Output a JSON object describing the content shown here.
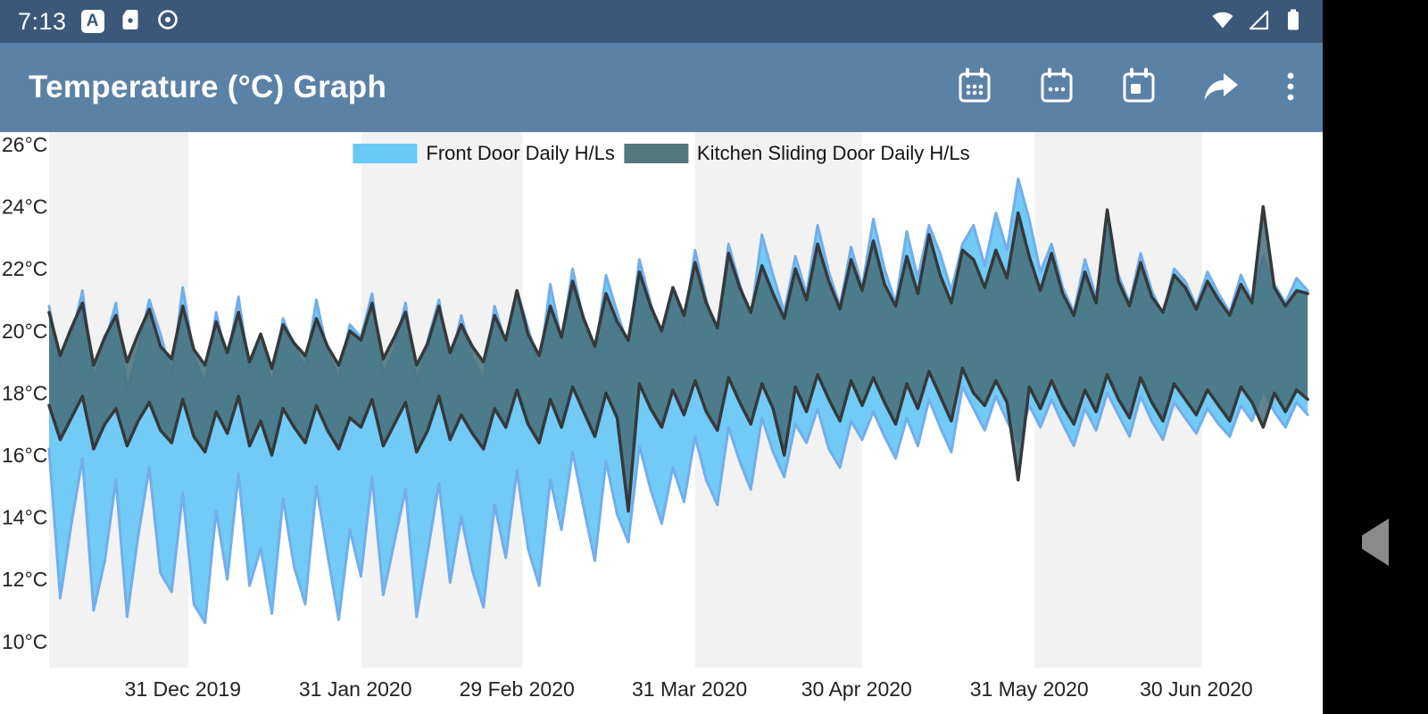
{
  "status_bar": {
    "time": "7:13",
    "a_badge": "A",
    "bg_color": "#3b5878",
    "left_icons": [
      "a-badge-icon",
      "sd-card-icon",
      "data-saver-icon"
    ],
    "right_icons": [
      "wifi-icon",
      "cell-signal-icon",
      "battery-icon"
    ]
  },
  "app_bar": {
    "title": "Temperature (°C) Graph",
    "bg_color": "#5c81a6",
    "actions": [
      "calendar-range-icon",
      "calendar-date-icon",
      "calendar-today-icon",
      "share-icon",
      "overflow-menu-icon"
    ]
  },
  "nav_bar": {
    "bg_color": "#000000",
    "icon_color": "#8a8a8a",
    "buttons": [
      "recents",
      "home",
      "back"
    ]
  },
  "chart_data": {
    "type": "area",
    "subtype": "daily-high-low-range-bands",
    "title": "Temperature (°C) Graph",
    "ylabel": "Temperature (°C)",
    "ylim": [
      10,
      26
    ],
    "y_ticks": [
      26,
      24,
      22,
      20,
      18,
      16,
      14,
      12,
      10
    ],
    "y_tick_suffix": "°C",
    "grid": "shaded-alternating-month-bands",
    "band_color": "#f2f2f2",
    "legend_position": "top-center",
    "x_start_date": "07 Dec 2019",
    "x_end_date": "21 Jul 2020",
    "step_days": 2,
    "x_ticks": [
      {
        "day": 24,
        "label": "31 Dec 2019"
      },
      {
        "day": 55,
        "label": "31 Jan 2020"
      },
      {
        "day": 84,
        "label": "29 Feb 2020"
      },
      {
        "day": 115,
        "label": "31 Mar 2020"
      },
      {
        "day": 145,
        "label": "30 Apr 2020"
      },
      {
        "day": 176,
        "label": "31 May 2020"
      },
      {
        "day": 206,
        "label": "30 Jun 2020"
      }
    ],
    "shaded_month_bands_days": [
      [
        0,
        25
      ],
      [
        56,
        85
      ],
      [
        116,
        146
      ],
      [
        177,
        207
      ]
    ],
    "series": [
      {
        "name": "Front Door Daily H/Ls",
        "legend_color": "#68c8f6",
        "fill": "#6ac7f5",
        "fill_opacity": 0.95,
        "stroke": "#72aeea",
        "stroke_width": 3,
        "high": [
          20.8,
          18.9,
          19.8,
          21.3,
          18.4,
          19.6,
          20.9,
          18.1,
          19.4,
          21.0,
          19.9,
          18.6,
          21.4,
          19.2,
          18.3,
          20.6,
          19.0,
          21.1,
          18.7,
          19.9,
          18.2,
          20.4,
          19.5,
          18.8,
          21.0,
          19.3,
          18.5,
          20.2,
          19.8,
          21.2,
          18.6,
          19.4,
          20.9,
          18.3,
          19.7,
          21.0,
          18.9,
          20.5,
          19.1,
          18.4,
          20.8,
          19.6,
          21.3,
          20.1,
          18.8,
          21.5,
          19.7,
          22.0,
          20.3,
          19.2,
          21.8,
          20.6,
          19.5,
          22.3,
          20.9,
          19.8,
          21.4,
          20.2,
          22.6,
          21.0,
          19.9,
          22.8,
          21.5,
          20.4,
          23.1,
          21.8,
          20.6,
          22.4,
          21.2,
          23.4,
          21.9,
          20.8,
          22.7,
          21.4,
          23.6,
          22.0,
          20.9,
          23.2,
          21.7,
          23.4,
          22.5,
          21.3,
          22.8,
          23.4,
          22.1,
          23.8,
          22.6,
          24.9,
          23.6,
          21.9,
          22.8,
          21.4,
          20.6,
          22.3,
          21.1,
          23.3,
          21.8,
          20.9,
          22.5,
          21.3,
          20.5,
          22.0,
          21.6,
          20.8,
          21.9,
          21.2,
          20.6,
          21.8,
          21.0,
          22.4,
          21.5,
          20.9,
          21.7,
          21.3
        ],
        "low": [
          16.2,
          11.4,
          13.8,
          15.9,
          11.0,
          12.6,
          15.2,
          10.8,
          13.4,
          15.6,
          12.2,
          11.6,
          14.8,
          11.2,
          10.6,
          14.2,
          12.0,
          15.4,
          11.8,
          13.0,
          10.9,
          14.6,
          12.4,
          11.2,
          15.0,
          12.8,
          10.7,
          13.6,
          12.1,
          15.3,
          11.5,
          13.2,
          14.9,
          10.8,
          12.9,
          15.1,
          11.9,
          14.0,
          12.3,
          11.1,
          14.4,
          12.7,
          15.5,
          13.0,
          11.8,
          15.2,
          13.6,
          16.1,
          14.3,
          12.6,
          15.8,
          14.1,
          13.2,
          16.3,
          14.9,
          13.8,
          15.6,
          14.5,
          16.6,
          15.2,
          14.4,
          16.9,
          15.8,
          14.9,
          17.2,
          16.1,
          15.3,
          17.0,
          16.4,
          17.5,
          16.2,
          15.6,
          17.1,
          16.5,
          17.4,
          16.6,
          15.9,
          17.2,
          16.3,
          17.8,
          16.9,
          16.1,
          18.2,
          17.5,
          16.8,
          17.9,
          17.1,
          16.4,
          17.6,
          16.9,
          17.8,
          17.0,
          16.3,
          17.5,
          16.8,
          18.0,
          17.3,
          16.6,
          17.9,
          17.1,
          16.5,
          17.7,
          17.2,
          16.7,
          17.5,
          17.0,
          16.6,
          17.6,
          17.1,
          18.1,
          17.4,
          16.9,
          17.7,
          17.3
        ]
      },
      {
        "name": "Kitchen Sliding Door Daily H/Ls",
        "legend_color": "#54787f",
        "fill": "#456e79",
        "fill_opacity": 0.85,
        "stroke": "#35393c",
        "stroke_width": 3.5,
        "high": [
          20.6,
          19.2,
          20.1,
          20.9,
          18.9,
          19.8,
          20.5,
          19.0,
          19.9,
          20.7,
          19.5,
          19.1,
          20.8,
          19.4,
          18.9,
          20.3,
          19.3,
          20.6,
          19.0,
          19.9,
          18.8,
          20.2,
          19.6,
          19.2,
          20.4,
          19.5,
          18.9,
          20.0,
          19.7,
          20.9,
          19.1,
          19.8,
          20.6,
          18.9,
          19.6,
          20.8,
          19.3,
          20.2,
          19.5,
          19.0,
          20.5,
          19.7,
          21.3,
          19.9,
          19.2,
          20.8,
          19.8,
          21.6,
          20.4,
          19.5,
          21.2,
          20.3,
          19.7,
          21.9,
          20.8,
          20.0,
          21.4,
          20.5,
          22.2,
          20.9,
          20.1,
          22.5,
          21.4,
          20.6,
          22.1,
          21.2,
          20.4,
          22.0,
          21.0,
          22.8,
          21.6,
          20.7,
          22.3,
          21.3,
          22.9,
          21.5,
          20.8,
          22.4,
          21.2,
          23.1,
          21.8,
          20.9,
          22.6,
          22.3,
          21.4,
          22.6,
          21.7,
          23.8,
          22.4,
          21.3,
          22.5,
          21.2,
          20.5,
          21.9,
          20.9,
          23.9,
          21.6,
          20.8,
          22.2,
          21.1,
          20.6,
          21.8,
          21.4,
          20.7,
          21.6,
          21.0,
          20.5,
          21.5,
          20.9,
          24.0,
          21.4,
          20.8,
          21.3,
          21.2
        ],
        "low": [
          17.6,
          16.5,
          17.2,
          17.9,
          16.2,
          17.0,
          17.5,
          16.3,
          17.1,
          17.7,
          16.8,
          16.4,
          17.8,
          16.6,
          16.1,
          17.4,
          16.7,
          17.9,
          16.3,
          17.1,
          16.0,
          17.5,
          16.9,
          16.4,
          17.6,
          16.8,
          16.2,
          17.2,
          16.9,
          17.8,
          16.3,
          17.0,
          17.7,
          16.1,
          16.8,
          17.9,
          16.5,
          17.3,
          16.7,
          16.2,
          17.5,
          16.9,
          18.1,
          17.0,
          16.4,
          17.8,
          16.9,
          18.2,
          17.4,
          16.6,
          18.0,
          17.2,
          14.2,
          18.3,
          17.5,
          16.9,
          18.1,
          17.3,
          18.4,
          17.4,
          16.8,
          18.5,
          17.7,
          17.0,
          18.3,
          17.5,
          16.0,
          18.2,
          17.4,
          18.6,
          17.8,
          17.1,
          18.4,
          17.6,
          18.5,
          17.7,
          17.0,
          18.3,
          17.5,
          18.7,
          17.9,
          17.1,
          18.8,
          18.0,
          17.6,
          18.4,
          17.7,
          15.2,
          18.2,
          17.5,
          18.4,
          17.6,
          17.0,
          18.1,
          17.4,
          18.6,
          17.8,
          17.2,
          18.5,
          17.7,
          17.1,
          18.3,
          17.8,
          17.3,
          18.1,
          17.6,
          17.1,
          18.2,
          17.7,
          16.9,
          18.0,
          17.4,
          18.1,
          17.8
        ]
      }
    ]
  }
}
